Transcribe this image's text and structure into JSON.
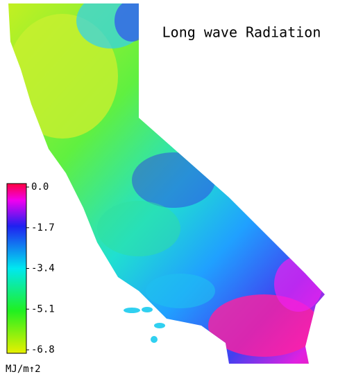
{
  "title": "Long wave Radiation",
  "colorbar": {
    "unit": "MJ/m↑2",
    "lim": [
      -6.8,
      0
    ],
    "ticks": [
      {
        "value": 0,
        "label": "0.0"
      },
      -1.7,
      -3.4,
      -5.1,
      -6.8
    ]
  }
}
